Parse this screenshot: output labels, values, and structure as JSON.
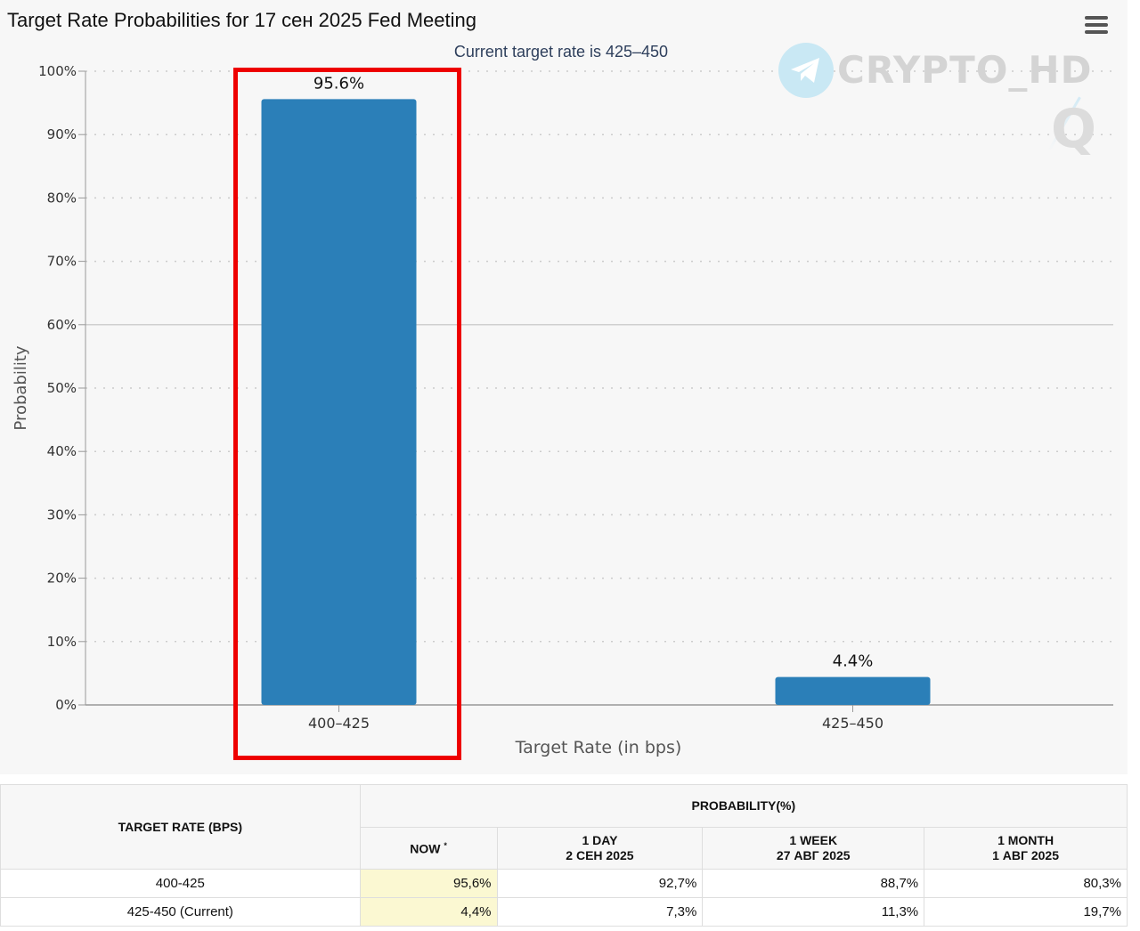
{
  "title": "Target Rate Probabilities for 17 сен 2025 Fed Meeting",
  "subtitle": "Current target rate is 425–450",
  "watermark": {
    "text": "CRYPTO_HD",
    "letter": "Q",
    "icon": "telegram-icon"
  },
  "menu": {
    "icon": "hamburger-menu-icon"
  },
  "colors": {
    "bar": "#2b7fb8",
    "highlight": "#ee0000",
    "now_column": "#fbf8d2"
  },
  "chart_data": {
    "type": "bar",
    "title": "Target Rate Probabilities for 17 сен 2025 Fed Meeting",
    "subtitle": "Current target rate is 425–450",
    "categories": [
      "400–425",
      "425–450"
    ],
    "values": [
      95.6,
      4.4
    ],
    "data_labels": [
      "95.6%",
      "4.4%"
    ],
    "xlabel": "Target Rate (in bps)",
    "ylabel": "Probability",
    "ylim": [
      0,
      100
    ],
    "yticks": [
      "0%",
      "10%",
      "20%",
      "30%",
      "40%",
      "50%",
      "60%",
      "70%",
      "80%",
      "90%",
      "100%"
    ],
    "grid": "dotted horizontal",
    "highlighted_category": "400–425"
  },
  "table": {
    "header_target": "TARGET RATE (BPS)",
    "header_prob": "PROBABILITY(%)",
    "columns": [
      {
        "line1": "NOW",
        "marker": "*",
        "line2": ""
      },
      {
        "line1": "1 DAY",
        "line2": "2 СЕН 2025"
      },
      {
        "line1": "1 WEEK",
        "line2": "27 АВГ 2025"
      },
      {
        "line1": "1 MONTH",
        "line2": "1 АВГ 2025"
      }
    ],
    "rows": [
      {
        "rate": "400-425",
        "values": [
          "95,6%",
          "92,7%",
          "88,7%",
          "80,3%"
        ]
      },
      {
        "rate": "425-450 (Current)",
        "values": [
          "4,4%",
          "7,3%",
          "11,3%",
          "19,7%"
        ]
      }
    ]
  }
}
